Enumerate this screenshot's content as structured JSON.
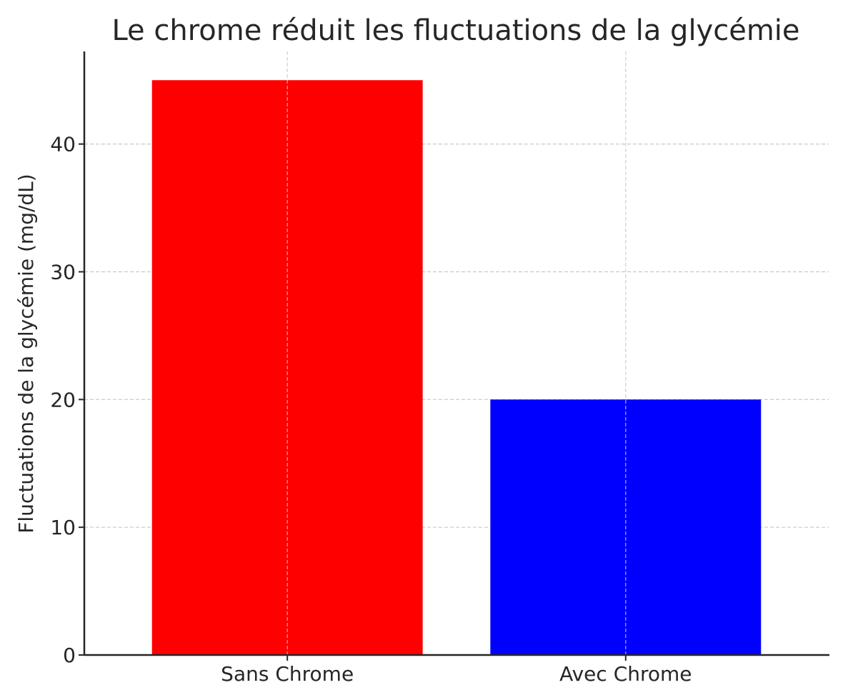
{
  "chart_data": {
    "type": "bar",
    "title": "Le chrome réduit les fluctuations de la glycémie",
    "xlabel": "",
    "ylabel": "Fluctuations de la glycémie (mg/dL)",
    "categories": [
      "Sans Chrome",
      "Avec Chrome"
    ],
    "values": [
      45,
      20
    ],
    "colors": [
      "#ff0000",
      "#0000ff"
    ],
    "ylim": [
      0,
      47.25
    ],
    "yticks": [
      0,
      10,
      20,
      30,
      40
    ],
    "grid": true,
    "legend": false
  }
}
